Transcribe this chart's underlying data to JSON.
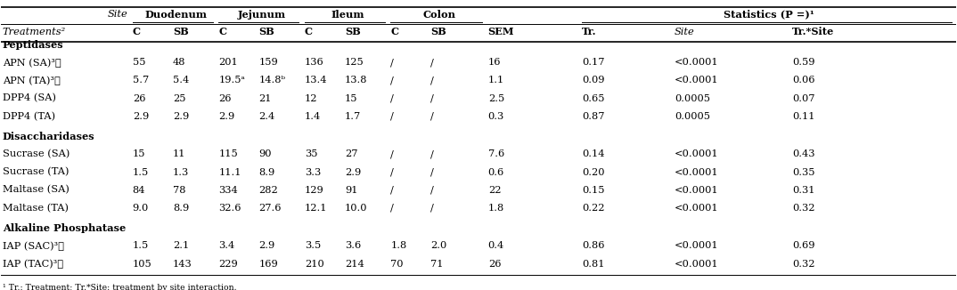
{
  "footnote": "¹ Tr.: Treatment; Tr.*Site: treatment by site interaction.",
  "sections": [
    {
      "section_label": "Peptidases",
      "rows": [
        {
          "label": "APN (SA)³˴",
          "vals": [
            "55",
            "48",
            "201",
            "159",
            "136",
            "125",
            "/",
            "/",
            "16",
            "0.17",
            "<0.0001",
            "0.59"
          ]
        },
        {
          "label": "APN (TA)³˴",
          "vals": [
            "5.7",
            "5.4",
            "19.5ᵃ",
            "14.8ᵇ",
            "13.4",
            "13.8",
            "/",
            "/",
            "1.1",
            "0.09",
            "<0.0001",
            "0.06"
          ]
        },
        {
          "label": "DPP4 (SA)",
          "vals": [
            "26",
            "25",
            "26",
            "21",
            "12",
            "15",
            "/",
            "/",
            "2.5",
            "0.65",
            "0.0005",
            "0.07"
          ]
        },
        {
          "label": "DPP4 (TA)",
          "vals": [
            "2.9",
            "2.9",
            "2.9",
            "2.4",
            "1.4",
            "1.7",
            "/",
            "/",
            "0.3",
            "0.87",
            "0.0005",
            "0.11"
          ]
        }
      ]
    },
    {
      "section_label": "Disaccharidases",
      "rows": [
        {
          "label": "Sucrase (SA)",
          "vals": [
            "15",
            "11",
            "115",
            "90",
            "35",
            "27",
            "/",
            "/",
            "7.6",
            "0.14",
            "<0.0001",
            "0.43"
          ]
        },
        {
          "label": "Sucrase (TA)",
          "vals": [
            "1.5",
            "1.3",
            "11.1",
            "8.9",
            "3.3",
            "2.9",
            "/",
            "/",
            "0.6",
            "0.20",
            "<0.0001",
            "0.35"
          ]
        },
        {
          "label": "Maltase (SA)",
          "vals": [
            "84",
            "78",
            "334",
            "282",
            "129",
            "91",
            "/",
            "/",
            "22",
            "0.15",
            "<0.0001",
            "0.31"
          ]
        },
        {
          "label": "Maltase (TA)",
          "vals": [
            "9.0",
            "8.9",
            "32.6",
            "27.6",
            "12.1",
            "10.0",
            "/",
            "/",
            "1.8",
            "0.22",
            "<0.0001",
            "0.32"
          ]
        }
      ]
    },
    {
      "section_label": "Alkaline Phosphatase",
      "rows": [
        {
          "label": "IAP (SAC)³˴",
          "vals": [
            "1.5",
            "2.1",
            "3.4",
            "2.9",
            "3.5",
            "3.6",
            "1.8",
            "2.0",
            "0.4",
            "0.86",
            "<0.0001",
            "0.69"
          ]
        },
        {
          "label": "IAP (TAC)³˴",
          "vals": [
            "105",
            "143",
            "229",
            "169",
            "210",
            "214",
            "70",
            "71",
            "26",
            "0.81",
            "<0.0001",
            "0.32"
          ]
        }
      ]
    }
  ],
  "bg_color": "#ffffff",
  "text_color": "#000000",
  "font_size": 8.2
}
